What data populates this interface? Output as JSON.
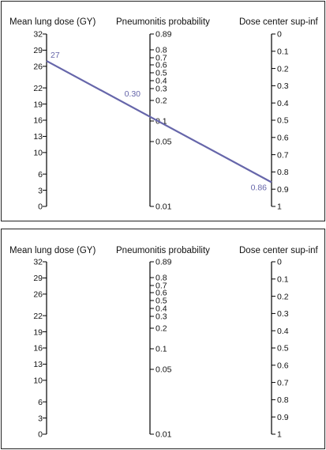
{
  "chart_data": [
    {
      "type": "nomogram",
      "axes": [
        {
          "id": "left",
          "title": "Mean lung dose (GY)",
          "ticks": [
            "32",
            "29",
            "26",
            "22",
            "19",
            "16",
            "13",
            "10",
            "6",
            "3",
            "0"
          ],
          "values": [
            32,
            29,
            26,
            22,
            19,
            16,
            13,
            10,
            6,
            3,
            0
          ]
        },
        {
          "id": "middle",
          "title": "Pneumonitis probability",
          "ticks": [
            "0.89",
            "0.8",
            "0.7",
            "0.6",
            "0.5",
            "0.4",
            "0.3",
            "0.2",
            "0.1",
            "0.05",
            "0.01"
          ],
          "values": [
            0.89,
            0.8,
            0.7,
            0.6,
            0.5,
            0.4,
            0.3,
            0.2,
            0.1,
            0.05,
            0.01
          ]
        },
        {
          "id": "right",
          "title": "Dose center sup-inf",
          "ticks": [
            "0",
            "0.1",
            "0.2",
            "0.3",
            "0.4",
            "0.5",
            "0.6",
            "0.7",
            "0.8",
            "0.9",
            "1"
          ],
          "values": [
            0,
            0.1,
            0.2,
            0.3,
            0.4,
            0.5,
            0.6,
            0.7,
            0.8,
            0.9,
            1
          ]
        }
      ],
      "example_line": {
        "color": "#6666aa",
        "mean_lung_dose": 27,
        "pneumonitis_probability": 0.3,
        "dose_center": 0.86,
        "labels": {
          "left": "27",
          "middle": "0.30",
          "right": "0.86"
        }
      }
    },
    {
      "type": "nomogram",
      "axes": [
        {
          "id": "left",
          "title": "Mean lung dose (GY)",
          "ticks": [
            "32",
            "29",
            "26",
            "22",
            "19",
            "16",
            "13",
            "10",
            "6",
            "3",
            "0"
          ],
          "values": [
            32,
            29,
            26,
            22,
            19,
            16,
            13,
            10,
            6,
            3,
            0
          ]
        },
        {
          "id": "middle",
          "title": "Pneumonitis probability",
          "ticks": [
            "0.89",
            "0.8",
            "0.7",
            "0.6",
            "0.5",
            "0.4",
            "0.3",
            "0.2",
            "0.1",
            "0.05",
            "0.01"
          ],
          "values": [
            0.89,
            0.8,
            0.7,
            0.6,
            0.5,
            0.4,
            0.3,
            0.2,
            0.1,
            0.05,
            0.01
          ]
        },
        {
          "id": "right",
          "title": "Dose center sup-inf",
          "ticks": [
            "0",
            "0.1",
            "0.2",
            "0.3",
            "0.4",
            "0.5",
            "0.6",
            "0.7",
            "0.8",
            "0.9",
            "1"
          ],
          "values": [
            0,
            0.1,
            0.2,
            0.3,
            0.4,
            0.5,
            0.6,
            0.7,
            0.8,
            0.9,
            1
          ]
        }
      ]
    }
  ]
}
